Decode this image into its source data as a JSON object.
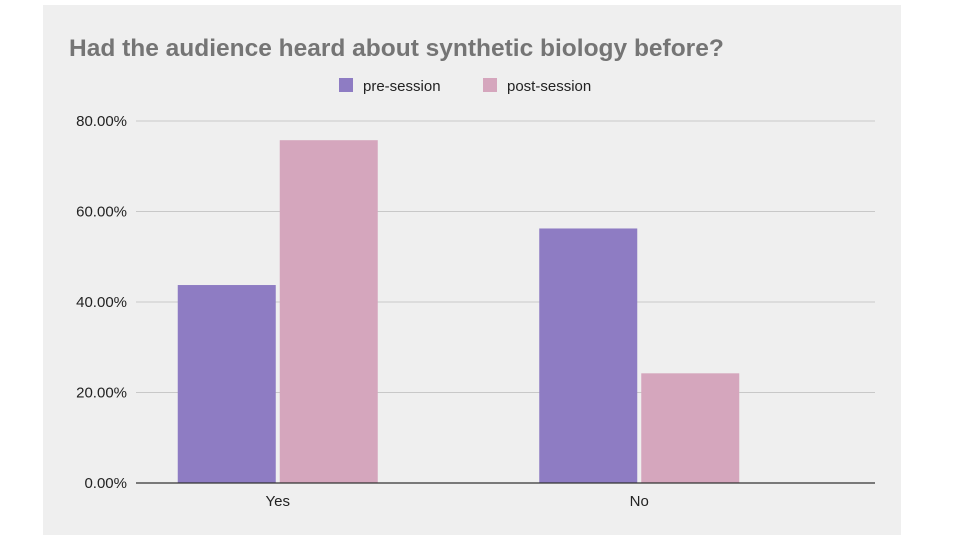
{
  "chart_data": {
    "type": "bar",
    "title": "Had the audience heard about synthetic biology before?",
    "categories": [
      "Yes",
      "No"
    ],
    "series": [
      {
        "name": "pre-session",
        "values": [
          43.75,
          56.25
        ],
        "color": "#8e7cc3"
      },
      {
        "name": "post-session",
        "values": [
          75.76,
          24.24
        ],
        "color": "#d5a6bd"
      }
    ],
    "ylim": [
      0,
      80
    ],
    "yticks": [
      "0.00%",
      "20.00%",
      "40.00%",
      "60.00%",
      "80.00%"
    ],
    "ytick_values": [
      0,
      20,
      40,
      60,
      80
    ],
    "grid": true,
    "legend_position": "top-center",
    "xlabel": "",
    "ylabel": ""
  }
}
